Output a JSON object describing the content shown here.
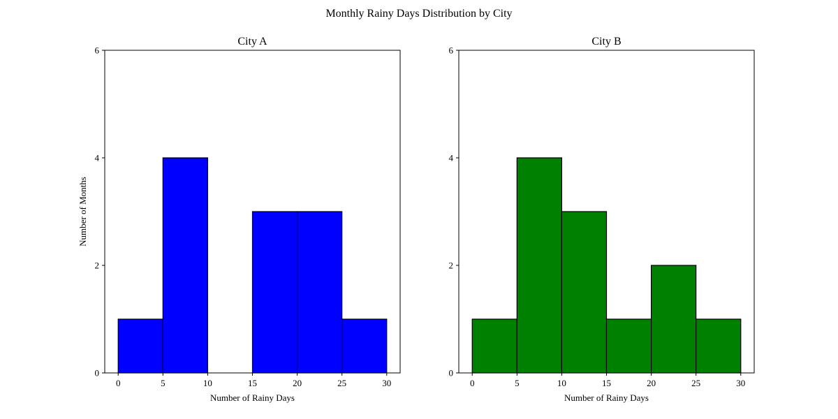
{
  "chart_data": {
    "type": "bar",
    "title": "Monthly Rainy Days Distribution by City",
    "edge_color": "#000000",
    "subplots": [
      {
        "title": "City A",
        "xlabel": "Number of Rainy Days",
        "ylabel": "Number of Months",
        "bin_edges": [
          0,
          5,
          10,
          15,
          20,
          25,
          30
        ],
        "values": [
          1,
          4,
          0,
          3,
          3,
          1
        ],
        "color": "#0000ff",
        "xlim": [
          -1.5,
          31.5
        ],
        "ylim": [
          0,
          6
        ],
        "xticks": [
          0,
          5,
          10,
          15,
          20,
          25,
          30
        ],
        "yticks": [
          0,
          2,
          4,
          6
        ]
      },
      {
        "title": "City B",
        "xlabel": "Number of Rainy Days",
        "ylabel": "",
        "bin_edges": [
          0,
          5,
          10,
          15,
          20,
          25,
          30
        ],
        "values": [
          1,
          4,
          3,
          1,
          2,
          1
        ],
        "color": "#008000",
        "xlim": [
          -1.5,
          31.5
        ],
        "ylim": [
          0,
          6
        ],
        "xticks": [
          0,
          5,
          10,
          15,
          20,
          25,
          30
        ],
        "yticks": [
          0,
          2,
          4,
          6
        ]
      }
    ]
  }
}
